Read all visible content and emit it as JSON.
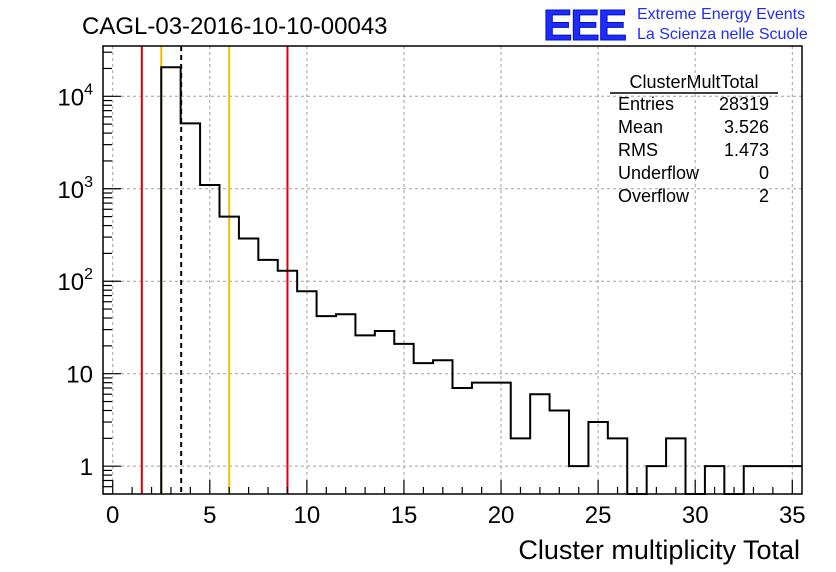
{
  "header": {
    "run_title": "CAGL-03-2016-10-10-00043",
    "logo_text": "EEE",
    "logo_line1": "Extreme Energy Events",
    "logo_line2": "La Scienza nelle Scuole"
  },
  "stats_box": {
    "title": "ClusterMultTotal",
    "rows": [
      {
        "label": "Entries",
        "value": "28319"
      },
      {
        "label": "Mean",
        "value": "3.526"
      },
      {
        "label": "RMS",
        "value": "1.473"
      },
      {
        "label": "Underflow",
        "value": "0"
      },
      {
        "label": "Overflow",
        "value": "2"
      }
    ]
  },
  "chart_data": {
    "type": "bar",
    "title": "CAGL-03-2016-10-10-00043",
    "xlabel": "Cluster multiplicity Total",
    "ylabel": "",
    "xlim": [
      -0.5,
      35.5
    ],
    "ylim": [
      0.5,
      35000
    ],
    "y_scale": "log",
    "grid": true,
    "bin_edges_start": 2.5,
    "bin_width": 1,
    "counts": [
      20600,
      5100,
      1100,
      500,
      290,
      170,
      130,
      78,
      42,
      44,
      26,
      29,
      21,
      13,
      14,
      7,
      8,
      8,
      2,
      6,
      4,
      1,
      3,
      2,
      0,
      1,
      2,
      0,
      1,
      0,
      1,
      1,
      1
    ],
    "x_ticks": [
      "0",
      "5",
      "10",
      "15",
      "20",
      "25",
      "30",
      "35"
    ],
    "x_tick_values": [
      0,
      5,
      10,
      15,
      20,
      25,
      30,
      35
    ],
    "y_ticks": [
      {
        "value": 1,
        "label": "1",
        "exp": ""
      },
      {
        "value": 10,
        "label": "10",
        "exp": ""
      },
      {
        "value": 100,
        "label": "10",
        "exp": "2"
      },
      {
        "value": 1000,
        "label": "10",
        "exp": "3"
      },
      {
        "value": 10000,
        "label": "10",
        "exp": "4"
      }
    ],
    "vertical_lines": [
      {
        "x": 1.5,
        "color": "#e00000",
        "style": "solid"
      },
      {
        "x": 2.5,
        "color": "#f0c000",
        "style": "solid"
      },
      {
        "x": 3.526,
        "color": "#000000",
        "style": "dashed"
      },
      {
        "x": 6.0,
        "color": "#f0c000",
        "style": "solid"
      },
      {
        "x": 9.0,
        "color": "#e00000",
        "style": "solid"
      }
    ],
    "colors": {
      "histogram": "#000000",
      "logo": "#1e2cff",
      "grid": "#a0a0a0"
    }
  }
}
